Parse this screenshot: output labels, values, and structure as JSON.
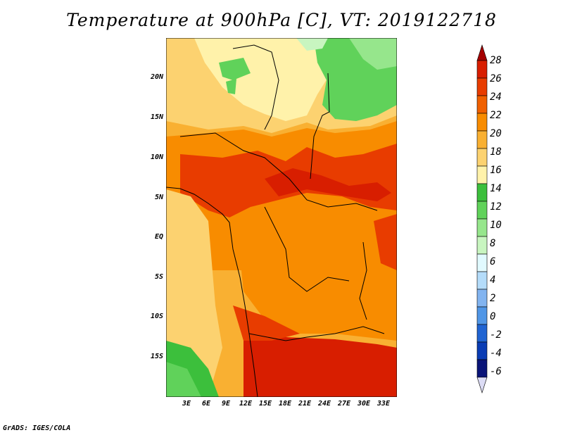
{
  "title": "Temperature at 900hPa [C], VT: 2019122718",
  "credit": "GrADS: IGES/COLA",
  "y_axis": {
    "labels": [
      "20N",
      "15N",
      "10N",
      "5N",
      "EQ",
      "5S",
      "10S",
      "15S"
    ],
    "values": [
      20,
      15,
      10,
      5,
      0,
      -5,
      -10,
      -15
    ],
    "range": [
      -20,
      24.6
    ]
  },
  "x_axis": {
    "labels": [
      "3E",
      "6E",
      "9E",
      "12E",
      "15E",
      "18E",
      "21E",
      "24E",
      "27E",
      "30E",
      "33E"
    ],
    "values": [
      3,
      6,
      9,
      12,
      15,
      18,
      21,
      24,
      27,
      30,
      33
    ],
    "range": [
      0,
      35
    ]
  },
  "colorbar": {
    "unit": "C",
    "labels": [
      "28",
      "26",
      "24",
      "22",
      "20",
      "18",
      "16",
      "14",
      "12",
      "10",
      "8",
      "6",
      "4",
      "2",
      "0",
      "-2",
      "-4",
      "-6"
    ],
    "colors": [
      "#a50000",
      "#d81e00",
      "#e83c00",
      "#f06000",
      "#f88c00",
      "#f9b032",
      "#fcd270",
      "#fff2aa",
      "#3cbf3c",
      "#60d25a",
      "#96e68c",
      "#c8f5c0",
      "#e1faff",
      "#b4dcfa",
      "#82b4f0",
      "#5096e6",
      "#2064d2",
      "#0a3cb4",
      "#0a1478",
      "#dcdcf5"
    ]
  }
}
